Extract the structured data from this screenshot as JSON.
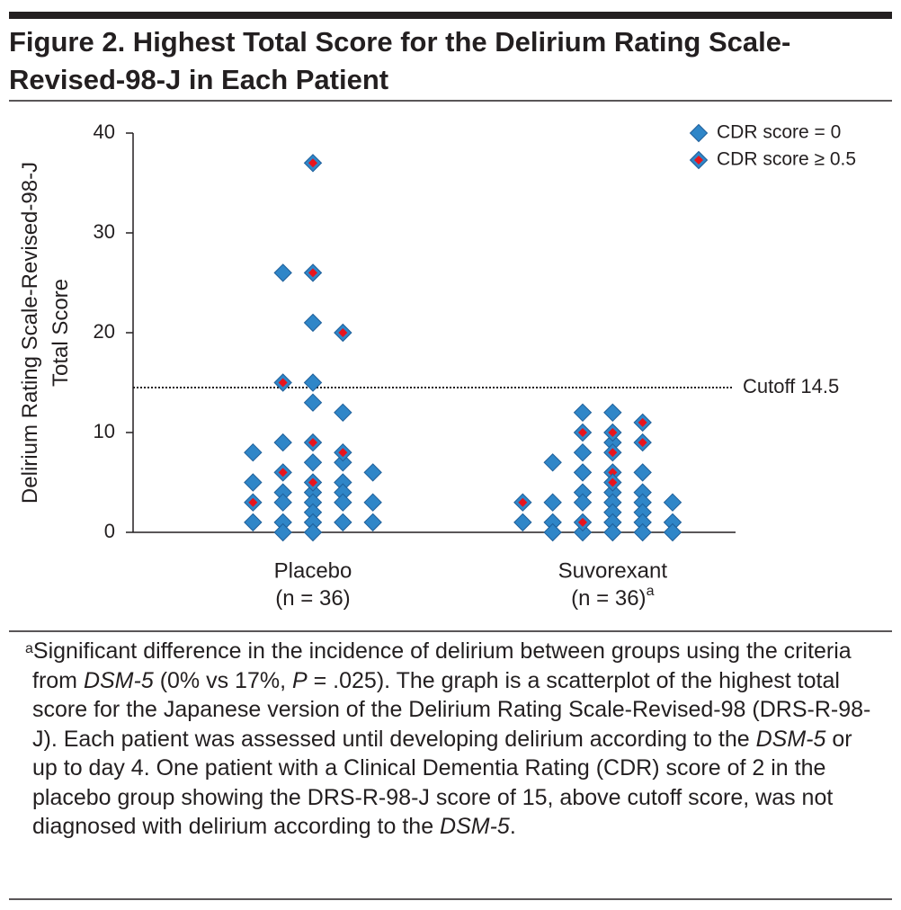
{
  "chart_data": {
    "type": "scatter",
    "title": "Figure 2. Highest Total Score for the Delirium Rating Scale-Revised-98-J in Each Patient",
    "ylabel": [
      "Delirium Rating Scale-Revised-98-J",
      "Total Score"
    ],
    "xlim": [
      0.4,
      2.41
    ],
    "xticks": [
      {
        "value": 1,
        "label": "Placebo"
      },
      {
        "value": 2,
        "label": "Suvorexant"
      }
    ],
    "xtick_sublabels": [
      "(n = 36)",
      "(n = 36)"
    ],
    "xtick_notes": [
      null,
      "a"
    ],
    "ylim": [
      0,
      40
    ],
    "yticks": [
      0,
      10,
      20,
      30,
      40
    ],
    "grid": false,
    "legend": "upper right",
    "cutoff": {
      "value": 14.5,
      "label": "Cutoff 14.5"
    },
    "series": [
      {
        "name": "CDR score = 0",
        "color": "#2f86c8",
        "edgecolor": "#1f5f9a",
        "x": [
          0.8,
          0.8,
          0.8,
          0.9,
          0.9,
          0.9,
          0.9,
          0.9,
          0.9,
          1.0,
          1.0,
          1.0,
          1.0,
          1.0,
          1.0,
          1.0,
          1.0,
          1.0,
          1.1,
          1.1,
          1.1,
          1.1,
          1.1,
          1.1,
          1.2,
          1.2,
          1.2,
          1.7,
          1.8,
          1.8,
          1.8,
          1.8,
          1.9,
          1.9,
          1.9,
          1.9,
          1.9,
          1.9,
          2.0,
          2.0,
          2.0,
          2.0,
          2.0,
          2.0,
          2.0,
          2.1,
          2.1,
          2.1,
          2.1,
          2.1,
          2.1,
          2.2,
          2.2,
          2.2
        ],
        "values": [
          8,
          5,
          1,
          26,
          9,
          4,
          3,
          1,
          0,
          21,
          15,
          13,
          7,
          4,
          3,
          2,
          1,
          0,
          12,
          7,
          5,
          4,
          3,
          1,
          6,
          3,
          1,
          1,
          7,
          3,
          1,
          0,
          12,
          8,
          6,
          4,
          3,
          0,
          12,
          9,
          4,
          3,
          2,
          1,
          0,
          6,
          4,
          3,
          2,
          1,
          0,
          3,
          1,
          0
        ]
      },
      {
        "name": "CDR score ≥ 0.5",
        "color": "#e8141c",
        "edgecolor": "#2f86c8",
        "x": [
          0.8,
          0.9,
          0.9,
          1.0,
          1.0,
          1.0,
          1.0,
          1.1,
          1.1,
          1.7,
          1.9,
          1.9,
          2.0,
          2.0,
          2.0,
          2.0,
          2.1,
          2.1
        ],
        "values": [
          3,
          15,
          6,
          37,
          26,
          9,
          5,
          20,
          8,
          3,
          10,
          1,
          10,
          8,
          6,
          5,
          11,
          9
        ]
      }
    ]
  },
  "footnote": {
    "marker": "a",
    "parts": [
      {
        "text": "Significant difference in the incidence of delirium between groups using the criteria from "
      },
      {
        "text": "DSM-5",
        "italic": true
      },
      {
        "text": " (0% vs 17%, "
      },
      {
        "text": "P",
        "italic": true
      },
      {
        "text": " = .025). The graph is a scatterplot of the highest total score for the Japanese version of the Delirium Rating Scale-Revised-98 (DRS-R-98-J). Each patient was assessed until developing delirium according to the "
      },
      {
        "text": "DSM-5",
        "italic": true
      },
      {
        "text": " or up to day 4. One patient with a Clinical Dementia Rating (CDR) score of 2 in the placebo group showing the DRS-R-98-J score of 15, above cutoff score, was not diagnosed with delirium according to the "
      },
      {
        "text": "DSM-5",
        "italic": true
      },
      {
        "text": "."
      }
    ]
  }
}
